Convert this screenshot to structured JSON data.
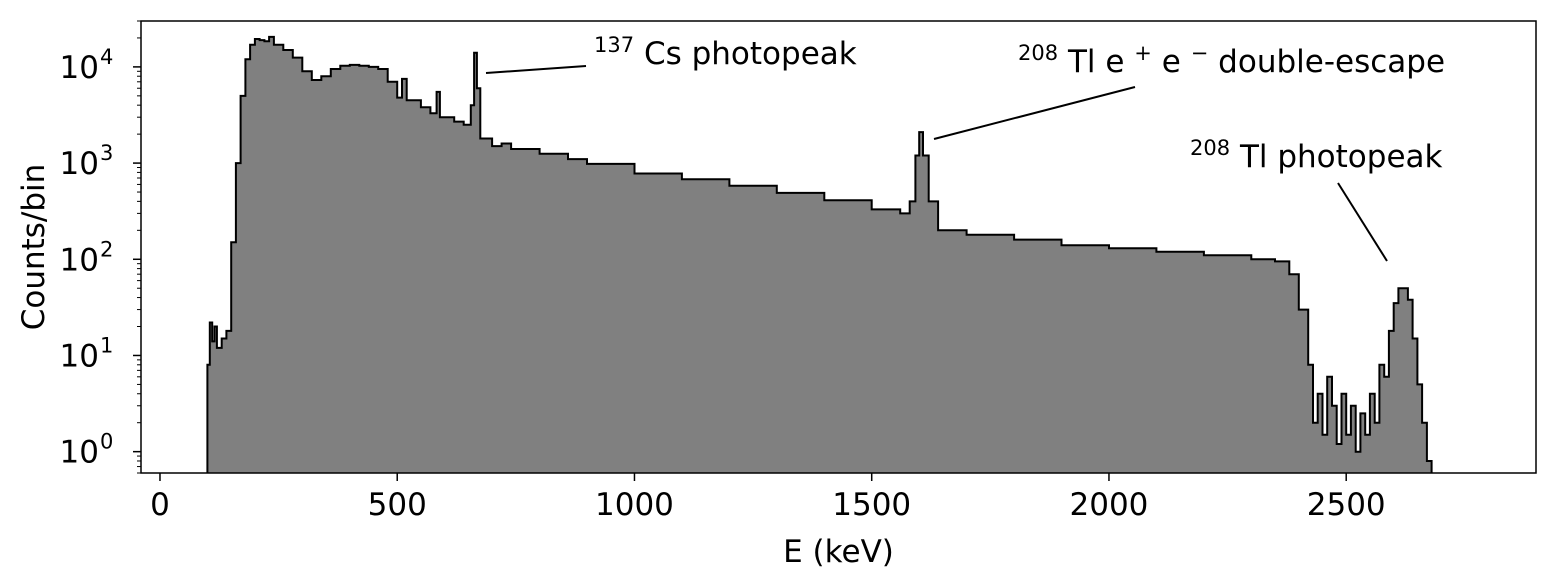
{
  "chart_data": {
    "type": "area",
    "title": "",
    "xlabel": "E (keV)",
    "ylabel": "Counts/bin",
    "xlim": [
      -40,
      2900
    ],
    "ylim": [
      0.6,
      30000
    ],
    "yscale": "log",
    "grid": false,
    "legend": "none",
    "fill_color": "#808080",
    "line_color": "#000000",
    "x_ticks": [
      0,
      500,
      1000,
      1500,
      2000,
      2500
    ],
    "x_tick_labels": [
      "0",
      "500",
      "1000",
      "1500",
      "2000",
      "2500"
    ],
    "y_ticks": [
      1,
      10,
      100,
      1000,
      10000
    ],
    "y_tick_labels": [
      {
        "base": "10",
        "exp": "0"
      },
      {
        "base": "10",
        "exp": "1"
      },
      {
        "base": "10",
        "exp": "2"
      },
      {
        "base": "10",
        "exp": "3"
      },
      {
        "base": "10",
        "exp": "4"
      }
    ],
    "series": [
      {
        "values": [
          [
            100,
            8
          ],
          [
            105,
            22
          ],
          [
            110,
            14
          ],
          [
            115,
            20
          ],
          [
            120,
            12
          ],
          [
            130,
            15
          ],
          [
            140,
            18
          ],
          [
            150,
            150
          ],
          [
            160,
            1000
          ],
          [
            170,
            5000
          ],
          [
            180,
            12000
          ],
          [
            190,
            17000
          ],
          [
            200,
            19500
          ],
          [
            210,
            19000
          ],
          [
            220,
            18500
          ],
          [
            230,
            20500
          ],
          [
            240,
            17000
          ],
          [
            260,
            15000
          ],
          [
            280,
            12500
          ],
          [
            300,
            9000
          ],
          [
            320,
            7300
          ],
          [
            340,
            8000
          ],
          [
            360,
            9500
          ],
          [
            380,
            10300
          ],
          [
            400,
            10500
          ],
          [
            420,
            10300
          ],
          [
            440,
            10000
          ],
          [
            460,
            9500
          ],
          [
            480,
            7000
          ],
          [
            500,
            4800
          ],
          [
            510,
            7500
          ],
          [
            520,
            4500
          ],
          [
            550,
            3800
          ],
          [
            570,
            3300
          ],
          [
            583,
            5500
          ],
          [
            590,
            3000
          ],
          [
            620,
            2700
          ],
          [
            640,
            2500
          ],
          [
            655,
            4000
          ],
          [
            662,
            14000
          ],
          [
            668,
            6000
          ],
          [
            675,
            1800
          ],
          [
            700,
            1500
          ],
          [
            720,
            1600
          ],
          [
            740,
            1400
          ],
          [
            800,
            1250
          ],
          [
            860,
            1100
          ],
          [
            900,
            980
          ],
          [
            1000,
            780
          ],
          [
            1100,
            680
          ],
          [
            1200,
            580
          ],
          [
            1300,
            490
          ],
          [
            1400,
            410
          ],
          [
            1500,
            330
          ],
          [
            1560,
            300
          ],
          [
            1580,
            400
          ],
          [
            1592,
            1200
          ],
          [
            1600,
            2100
          ],
          [
            1608,
            1200
          ],
          [
            1620,
            400
          ],
          [
            1640,
            200
          ],
          [
            1700,
            180
          ],
          [
            1800,
            160
          ],
          [
            1900,
            140
          ],
          [
            2000,
            130
          ],
          [
            2100,
            120
          ],
          [
            2200,
            110
          ],
          [
            2300,
            100
          ],
          [
            2350,
            95
          ],
          [
            2380,
            70
          ],
          [
            2400,
            30
          ],
          [
            2420,
            8
          ],
          [
            2430,
            2
          ],
          [
            2440,
            4
          ],
          [
            2450,
            1.5
          ],
          [
            2460,
            6
          ],
          [
            2470,
            3
          ],
          [
            2480,
            1.2
          ],
          [
            2490,
            4
          ],
          [
            2500,
            1.5
          ],
          [
            2510,
            3
          ],
          [
            2520,
            1
          ],
          [
            2530,
            2.5
          ],
          [
            2540,
            1.5
          ],
          [
            2550,
            4
          ],
          [
            2560,
            2
          ],
          [
            2570,
            8
          ],
          [
            2580,
            6
          ],
          [
            2590,
            18
          ],
          [
            2600,
            35
          ],
          [
            2610,
            50
          ],
          [
            2620,
            50
          ],
          [
            2630,
            38
          ],
          [
            2640,
            15
          ],
          [
            2650,
            5
          ],
          [
            2660,
            2
          ],
          [
            2670,
            0.8
          ],
          [
            2680,
            0.4
          ]
        ]
      }
    ],
    "annotations": [
      {
        "pre_sup": "137",
        "text": "Cs photopeak",
        "point": [
          662,
          10000
        ]
      },
      {
        "pre_sup": "208",
        "text": "Tl e",
        "sup1": "+",
        "mid": "e",
        "sup2": "−",
        "tail": " double-escape",
        "point": [
          1600,
          2000
        ]
      },
      {
        "pre_sup": "208",
        "text": "Tl photopeak",
        "point": [
          2614,
          100
        ]
      }
    ]
  }
}
